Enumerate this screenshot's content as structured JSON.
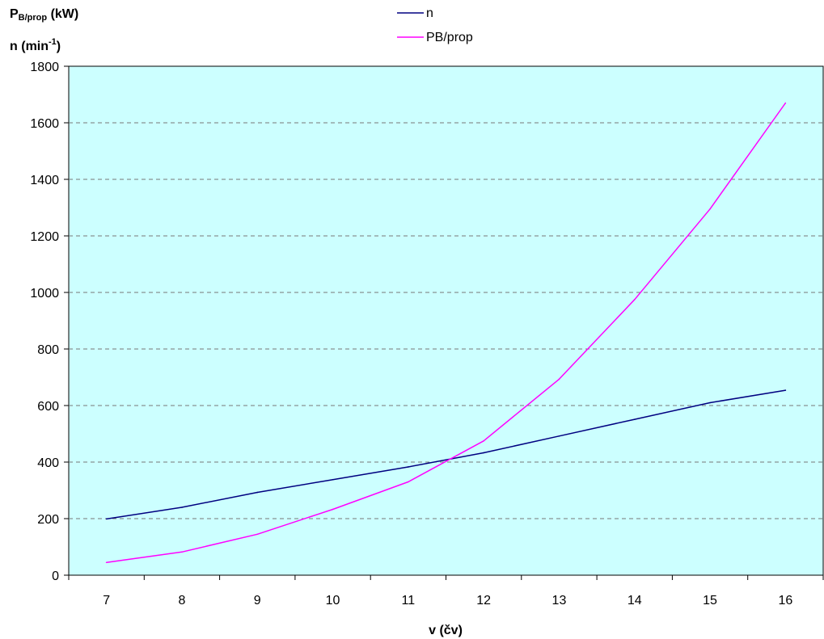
{
  "chart_data": {
    "type": "line",
    "ylabel_power": {
      "main": "P",
      "sub": "B/prop",
      "unit": "(kW)"
    },
    "ylabel_speed": {
      "main": "n",
      "unit_pre": "(min",
      "sup": "-1",
      "unit_post": ")"
    },
    "xlabel": "v (čv)",
    "x": [
      7,
      8,
      9,
      10,
      11,
      12,
      13,
      14,
      15,
      16
    ],
    "x_ticks": [
      "7",
      "8",
      "9",
      "10",
      "11",
      "12",
      "13",
      "14",
      "15",
      "16"
    ],
    "ylim": [
      0,
      1800
    ],
    "y_ticks": [
      0,
      200,
      400,
      600,
      800,
      1000,
      1200,
      1400,
      1600,
      1800
    ],
    "grid": "horizontal-dashed",
    "plot_background": "#ccffff",
    "legend_position": "top-center",
    "series": [
      {
        "name": "n",
        "color": "#000080",
        "values": [
          199,
          240,
          293,
          338,
          383,
          433,
          492,
          551,
          610,
          654
        ]
      },
      {
        "name": "PB/prop",
        "color": "#ff00ff",
        "values": [
          45,
          82,
          145,
          233,
          330,
          475,
          693,
          975,
          1295,
          1670
        ]
      }
    ]
  }
}
